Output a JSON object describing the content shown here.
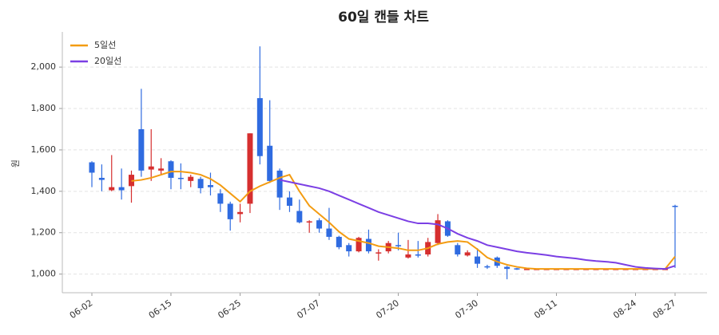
{
  "chart_data": {
    "type": "candlestick",
    "title": "60일 캔들 차트",
    "y_label": "원",
    "categories": [
      "06-02",
      null,
      null,
      null,
      null,
      null,
      null,
      null,
      "06-15",
      null,
      null,
      null,
      null,
      null,
      null,
      "06-25",
      null,
      null,
      null,
      null,
      null,
      null,
      null,
      "07-07",
      null,
      null,
      null,
      null,
      null,
      null,
      null,
      "07-20",
      null,
      null,
      null,
      null,
      null,
      null,
      null,
      "07-30",
      null,
      null,
      null,
      null,
      null,
      null,
      null,
      "08-11",
      null,
      null,
      null,
      null,
      null,
      null,
      null,
      "08-24",
      null,
      null,
      null,
      "08-27"
    ],
    "open": [
      1540,
      1465,
      1405,
      1420,
      1425,
      1700,
      1505,
      1500,
      1545,
      1465,
      1450,
      1460,
      1430,
      1390,
      1340,
      1290,
      1340,
      1850,
      1620,
      1500,
      1370,
      1305,
      1250,
      1260,
      1220,
      1180,
      1140,
      1110,
      1170,
      1100,
      1110,
      1140,
      1080,
      1095,
      1095,
      1150,
      1255,
      1140,
      1090,
      1085,
      1038,
      1080,
      1035,
      1028,
      1025,
      1025,
      1025,
      1025,
      1025,
      1025,
      1025,
      1025,
      1025,
      1025,
      1025,
      1025,
      1025,
      1025,
      1025,
      1330
    ],
    "high": [
      1545,
      1530,
      1575,
      1510,
      1500,
      1895,
      1700,
      1560,
      1550,
      1535,
      1480,
      1470,
      1490,
      1410,
      1350,
      1340,
      1680,
      2100,
      1840,
      1510,
      1400,
      1360,
      1260,
      1270,
      1320,
      1185,
      1150,
      1180,
      1215,
      1120,
      1160,
      1200,
      1165,
      1160,
      1175,
      1290,
      1260,
      1150,
      1115,
      1125,
      1045,
      1085,
      1040,
      1030,
      1025,
      1025,
      1025,
      1025,
      1025,
      1025,
      1025,
      1025,
      1025,
      1025,
      1025,
      1025,
      1025,
      1025,
      1025,
      1335
    ],
    "low": [
      1420,
      1400,
      1400,
      1360,
      1345,
      1470,
      1450,
      1480,
      1410,
      1410,
      1420,
      1390,
      1380,
      1300,
      1210,
      1250,
      1295,
      1530,
      1440,
      1310,
      1300,
      1245,
      1200,
      1200,
      1165,
      1120,
      1085,
      1105,
      1100,
      1065,
      1100,
      1115,
      1075,
      1080,
      1085,
      1140,
      1180,
      1085,
      1085,
      1030,
      1025,
      1030,
      975,
      1020,
      1025,
      1025,
      1025,
      1025,
      1025,
      1025,
      1025,
      1025,
      1025,
      1025,
      1025,
      1025,
      1025,
      1025,
      1025,
      1030
    ],
    "close": [
      1490,
      1455,
      1420,
      1405,
      1480,
      1500,
      1520,
      1510,
      1465,
      1460,
      1470,
      1415,
      1420,
      1340,
      1265,
      1300,
      1680,
      1570,
      1450,
      1370,
      1330,
      1250,
      1255,
      1220,
      1180,
      1130,
      1110,
      1175,
      1110,
      1105,
      1150,
      1135,
      1095,
      1090,
      1155,
      1260,
      1185,
      1095,
      1105,
      1050,
      1032,
      1040,
      1025,
      1022,
      1025,
      1025,
      1025,
      1025,
      1025,
      1025,
      1025,
      1025,
      1025,
      1025,
      1025,
      1025,
      1025,
      1025,
      1025,
      1325
    ],
    "up_color": "#d62f2f",
    "down_color": "#2f6be0",
    "series": [
      {
        "name": "5일선",
        "color": "#f39c12",
        "values": [
          null,
          null,
          null,
          null,
          1450,
          1455,
          1465,
          1480,
          1495,
          1495,
          1490,
          1480,
          1460,
          1430,
          1390,
          1350,
          1400,
          1425,
          1445,
          1465,
          1480,
          1400,
          1330,
          1290,
          1250,
          1205,
          1170,
          1160,
          1150,
          1135,
          1130,
          1125,
          1115,
          1115,
          1125,
          1145,
          1155,
          1160,
          1155,
          1120,
          1080,
          1060,
          1045,
          1035,
          1028,
          1025,
          1025,
          1025,
          1025,
          1025,
          1025,
          1025,
          1025,
          1025,
          1025,
          1025,
          1025,
          1025,
          1025,
          1085
        ]
      },
      {
        "name": "20일선",
        "color": "#7b3fe4",
        "values": [
          null,
          null,
          null,
          null,
          null,
          null,
          null,
          null,
          null,
          null,
          null,
          null,
          null,
          null,
          null,
          null,
          null,
          null,
          null,
          1455,
          1445,
          1435,
          1425,
          1415,
          1400,
          1380,
          1360,
          1340,
          1320,
          1300,
          1285,
          1270,
          1255,
          1245,
          1245,
          1240,
          1220,
          1195,
          1175,
          1160,
          1140,
          1130,
          1120,
          1110,
          1103,
          1098,
          1092,
          1085,
          1080,
          1075,
          1068,
          1063,
          1060,
          1055,
          1045,
          1035,
          1030,
          1027,
          1025,
          1040
        ]
      }
    ],
    "ylim": [
      910,
      2170
    ],
    "yticks": [
      {
        "value": 1000,
        "label": "1,000"
      },
      {
        "value": 1200,
        "label": "1,200"
      },
      {
        "value": 1400,
        "label": "1,400"
      },
      {
        "value": 1600,
        "label": "1,600"
      },
      {
        "value": 1800,
        "label": "1,800"
      },
      {
        "value": 2000,
        "label": "2,000"
      }
    ],
    "grid": true,
    "legend": "upper left"
  }
}
